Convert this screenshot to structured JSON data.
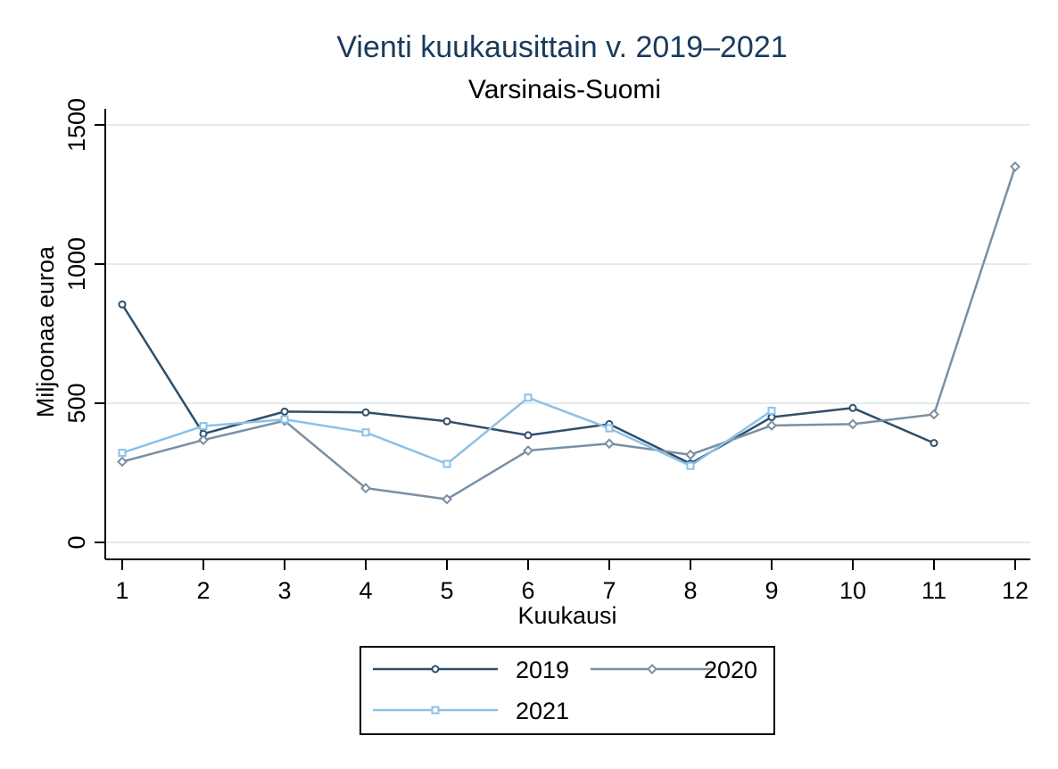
{
  "chart_data": {
    "type": "line",
    "title": "Vienti kuukausittain v. 2019–2021",
    "subtitle": "Varsinais-Suomi",
    "xlabel": "Kuukausi",
    "ylabel": "Miljoonaa euroa",
    "x": [
      1,
      2,
      3,
      4,
      5,
      6,
      7,
      8,
      9,
      10,
      11,
      12
    ],
    "x_ticks": [
      "1",
      "2",
      "3",
      "4",
      "5",
      "6",
      "7",
      "8",
      "9",
      "10",
      "11",
      "12"
    ],
    "y_ticks": [
      "0",
      "500",
      "1000",
      "1500"
    ],
    "ylim": [
      0,
      1500
    ],
    "xlim": [
      1,
      12
    ],
    "grid": true,
    "legend_position": "bottom",
    "series": [
      {
        "name": "2019",
        "color": "#2f4f6b",
        "marker": "circle",
        "values": [
          855,
          390,
          470,
          467,
          435,
          385,
          425,
          283,
          450,
          483,
          357,
          null
        ]
      },
      {
        "name": "2020",
        "color": "#7a8fa3",
        "marker": "diamond",
        "values": [
          290,
          368,
          437,
          195,
          155,
          330,
          355,
          315,
          420,
          425,
          460,
          1350
        ]
      },
      {
        "name": "2021",
        "color": "#8cc1e6",
        "marker": "square",
        "values": [
          322,
          418,
          442,
          395,
          282,
          520,
          410,
          275,
          473,
          null,
          null,
          null
        ]
      }
    ]
  }
}
